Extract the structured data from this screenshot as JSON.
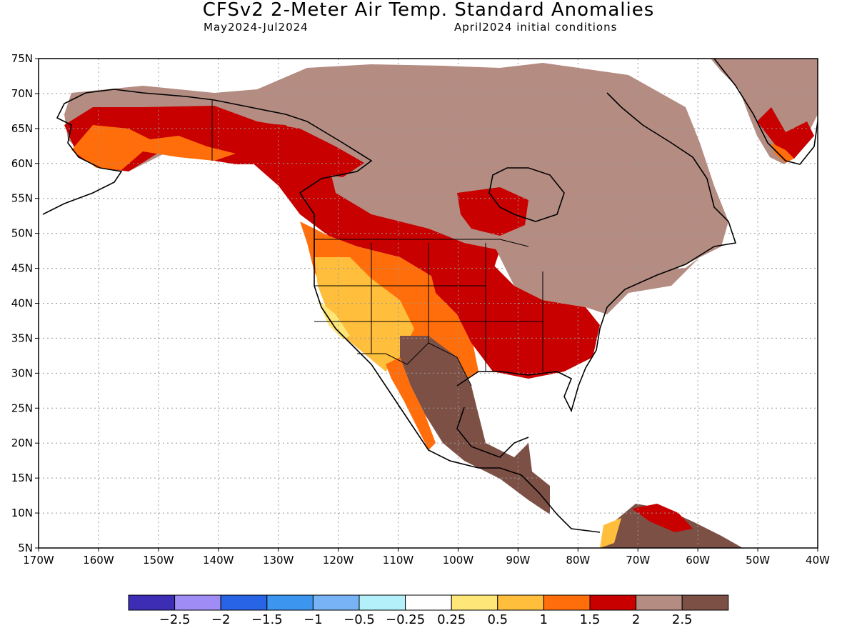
{
  "header": {
    "title": "CFSv2 2-Meter Air Temp. Standard Anomalies",
    "period": "May2024-Jul2024",
    "initial_conditions": "April2024 initial conditions"
  },
  "map": {
    "lat_ticks": [
      "75N",
      "70N",
      "65N",
      "60N",
      "55N",
      "50N",
      "45N",
      "40N",
      "35N",
      "30N",
      "25N",
      "20N",
      "15N",
      "10N",
      "5N"
    ],
    "lon_ticks": [
      "170W",
      "160W",
      "150W",
      "140W",
      "130W",
      "120W",
      "110W",
      "100W",
      "90W",
      "80W",
      "70W",
      "60W",
      "50W",
      "40W"
    ],
    "lon_range": [
      -170,
      -40
    ],
    "lat_range": [
      5,
      75
    ],
    "grid": true
  },
  "colorbar": {
    "colors": [
      "#3c2db4",
      "#a08cf5",
      "#2864e6",
      "#3c96f0",
      "#78b4f5",
      "#b4f0fa",
      "#ffffff",
      "#ffe678",
      "#ffbe3c",
      "#ff6e0a",
      "#c80000",
      "#b48c82",
      "#7d5046"
    ],
    "labels": [
      "-2.5",
      "-2",
      "-1.5",
      "-1",
      "-0.5",
      "-0.25",
      "0.25",
      "0.5",
      "1",
      "1.5",
      "2",
      "2.5"
    ]
  }
}
